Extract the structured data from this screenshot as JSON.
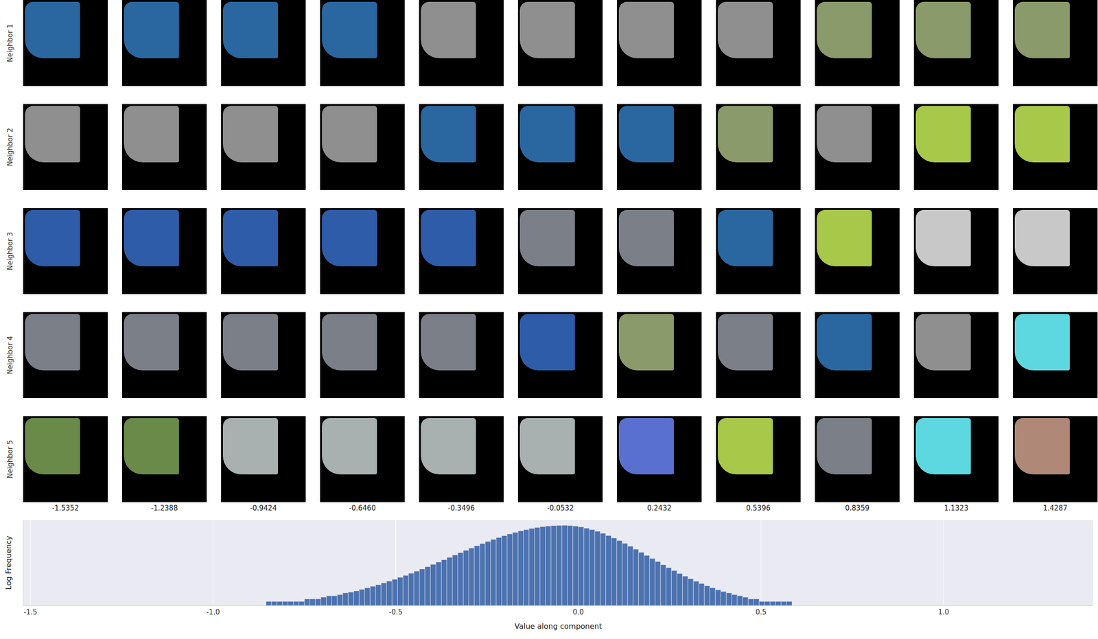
{
  "image_grid": {
    "rows": [
      {
        "name": "Neighbor 1",
        "colors": [
          "#2a67a0",
          "#2a67a0",
          "#2a67a0",
          "#2a67a0",
          "#8f8f8f",
          "#8f8f8f",
          "#8f8f8f",
          "#8f8f8f",
          "#8a9a6a",
          "#8a9a6a",
          "#8a9a6a"
        ]
      },
      {
        "name": "Neighbor 2",
        "colors": [
          "#8f8f8f",
          "#8f8f8f",
          "#8f8f8f",
          "#8f8f8f",
          "#2a67a0",
          "#2a67a0",
          "#2a67a0",
          "#8a9a6a",
          "#8f8f8f",
          "#a8c84a",
          "#a8c84a"
        ]
      },
      {
        "name": "Neighbor 3",
        "colors": [
          "#2f5ca8",
          "#2f5ca8",
          "#2f5ca8",
          "#2f5ca8",
          "#2f5ca8",
          "#7a7f88",
          "#7a7f88",
          "#2a67a0",
          "#a8c84a",
          "#c8c8c8",
          "#c8c8c8"
        ]
      },
      {
        "name": "Neighbor 4",
        "colors": [
          "#7a7f88",
          "#7a7f88",
          "#7a7f88",
          "#7a7f88",
          "#7a7f88",
          "#2f5ca8",
          "#8a9a6a",
          "#7a7f88",
          "#2a67a0",
          "#8f8f8f",
          "#5ed8e0"
        ]
      },
      {
        "name": "Neighbor 5",
        "colors": [
          "#6a8a4a",
          "#6a8a4a",
          "#a8b0b0",
          "#a8b0b0",
          "#a8b0b0",
          "#a8b0b0",
          "#5a70d0",
          "#a8c84a",
          "#7a7f88",
          "#5ed8e0",
          "#b08878"
        ]
      }
    ],
    "column_values": [
      -1.5352,
      -1.2388,
      -0.9424,
      {
        "value": -0.646,
        "label": "-0.6460"
      },
      -0.3496,
      -0.0532,
      0.2432,
      0.5396,
      0.8359,
      1.1323,
      1.4287
    ]
  },
  "chart_data": {
    "type": "histogram",
    "xlabel": "Value along component",
    "ylabel": "Log Frequency",
    "color": "#4c72b0",
    "log": "y",
    "grid": true,
    "tick_labels": "x",
    "xlim": [
      -1.52,
      1.41
    ],
    "xticks": [
      -1.5,
      {
        "value": -1,
        "label": "-1.0"
      },
      -0.5,
      {
        "value": 0,
        "label": "0.0"
      },
      0.5,
      {
        "value": 1,
        "label": "1.0"
      }
    ],
    "ylim": [
      1,
      1000000
    ],
    "bins": [
      -0.9,
      -0.885,
      -0.87,
      -0.855,
      -0.84,
      -0.825,
      -0.81,
      -0.795,
      -0.78,
      -0.765,
      -0.75,
      -0.735,
      -0.72,
      -0.705,
      -0.69,
      -0.675,
      -0.66,
      -0.645,
      -0.63,
      -0.615,
      -0.6,
      -0.585,
      -0.57,
      -0.555,
      -0.54,
      -0.525,
      -0.51,
      -0.495,
      -0.48,
      -0.465,
      -0.45,
      -0.435,
      -0.42,
      -0.405,
      -0.39,
      -0.375,
      -0.36,
      -0.345,
      -0.33,
      -0.315,
      -0.3,
      -0.285,
      -0.27,
      -0.255,
      -0.24,
      -0.225,
      -0.21,
      -0.195,
      -0.18,
      -0.165,
      -0.15,
      -0.135,
      -0.12,
      -0.105,
      -0.09,
      -0.075,
      -0.06,
      -0.045,
      -0.03,
      -0.015,
      0,
      0.015,
      0.03,
      0.045,
      0.06,
      0.075,
      0.09,
      0.105,
      0.12,
      0.135,
      0.15,
      0.165,
      0.18,
      0.195,
      0.21,
      0.225,
      0.24,
      0.255,
      0.27,
      0.285,
      0.3,
      0.315,
      0.33,
      0.345,
      0.36,
      0.375,
      0.39,
      0.405,
      0.42,
      0.435,
      0.45,
      0.465,
      0.48,
      0.495,
      0.51,
      0.525,
      0.54,
      0.555,
      0.57,
      0.585,
      0.6
    ],
    "counts": [
      1,
      1,
      1,
      2,
      2,
      2,
      2,
      2,
      2,
      2,
      3,
      3,
      3,
      4,
      5,
      5,
      6,
      8,
      9,
      11,
      14,
      18,
      23,
      30,
      40,
      53,
      71,
      98,
      135,
      189,
      268,
      382,
      550,
      796,
      1159,
      1690,
      2477,
      3622,
      5297,
      7695,
      11170,
      16070,
      22850,
      32210,
      44770,
      61240,
      82400,
      108800,
      140600,
      177500,
      218800,
      263000,
      307600,
      349900,
      386400,
      414900,
      432500,
      436500,
      420700,
      385500,
      335700,
      278000,
      219800,
      166000,
      120200,
      83950,
      56620,
      37150,
      23710,
      14860,
      9183,
      5598,
      3396,
      2052,
      1245,
      759,
      467,
      291,
      184,
      119,
      78,
      52,
      36,
      25,
      18,
      13,
      10,
      8,
      6,
      5,
      4,
      3,
      3,
      2,
      2,
      2,
      2,
      2,
      2,
      1
    ]
  }
}
